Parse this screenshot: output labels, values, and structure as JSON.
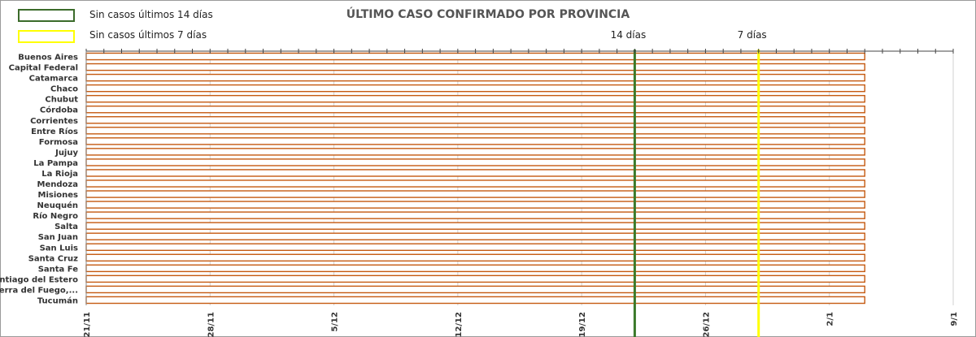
{
  "chart_data": {
    "type": "bar",
    "title": "ÚLTIMO CASO CONFIRMADO POR PROVINCIA",
    "categories": [
      "Buenos Aires",
      "Capital Federal",
      "Catamarca",
      "Chaco",
      "Chubut",
      "Córdoba",
      "Corrientes",
      "Entre Ríos",
      "Formosa",
      "Jujuy",
      "La Pampa",
      "La Rioja",
      "Mendoza",
      "Misiones",
      "Neuquén",
      "Río Negro",
      "Salta",
      "San Juan",
      "San Luis",
      "Santa Cruz",
      "Santa Fe",
      "Santiago del Estero",
      "Tierra del Fuego,...",
      "Tucumán"
    ],
    "series": [
      {
        "values": [
          "2020-01-04",
          "2020-01-04",
          "2020-01-04",
          "2020-01-04",
          "2020-01-04",
          "2020-01-04",
          "2020-01-04",
          "2020-01-04",
          "2020-01-04",
          "2020-01-04",
          "2020-01-04",
          "2020-01-04",
          "2020-01-04",
          "2020-01-04",
          "2020-01-04",
          "2020-01-04",
          "2020-01-04",
          "2020-01-04",
          "2020-01-04",
          "2020-01-04",
          "2020-01-04",
          "2020-01-04",
          "2020-01-04",
          "2020-01-04"
        ]
      }
    ],
    "x_axis": {
      "range": [
        "2019-11-21",
        "2020-01-09"
      ],
      "ticks": [
        {
          "date": "2019-11-21",
          "label": "21/11"
        },
        {
          "date": "2019-11-28",
          "label": "28/11"
        },
        {
          "date": "2019-12-05",
          "label": "5/12"
        },
        {
          "date": "2019-12-12",
          "label": "12/12"
        },
        {
          "date": "2019-12-19",
          "label": "19/12"
        },
        {
          "date": "2019-12-26",
          "label": "26/12"
        },
        {
          "date": "2020-01-02",
          "label": "2/1"
        },
        {
          "date": "2020-01-09",
          "label": "9/1"
        }
      ]
    },
    "reference_lines": [
      {
        "date": "2019-12-22",
        "label": "14 días",
        "color": "#3b7a2a"
      },
      {
        "date": "2019-12-29",
        "label": "7 días",
        "color": "#ffff00"
      }
    ],
    "legend": {
      "position": "top-left",
      "items": [
        {
          "label": "Sin casos últimos 14 días",
          "color": "#3b6b2a"
        },
        {
          "label": "Sin casos últimos 7 días",
          "color": "#ffff00"
        }
      ]
    },
    "bar_color": "#c55a11",
    "grid": true
  }
}
